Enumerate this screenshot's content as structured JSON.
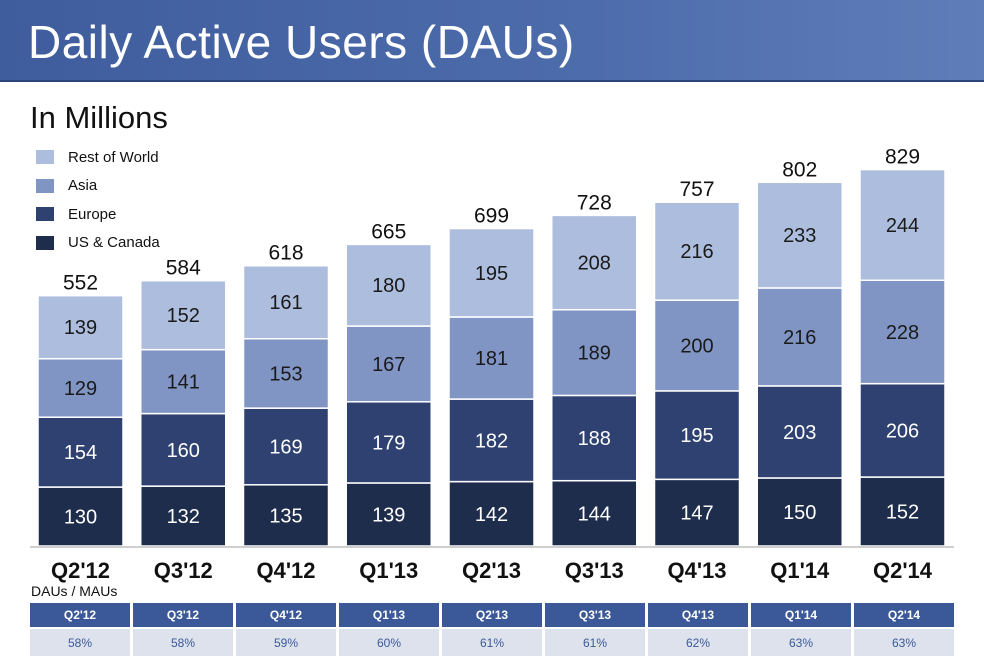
{
  "header": {
    "title": "Daily Active Users (DAUs)"
  },
  "chart_data": {
    "type": "bar",
    "stacked": true,
    "subtitle": "In Millions",
    "categories": [
      "Q2'12",
      "Q3'12",
      "Q4'12",
      "Q1'13",
      "Q2'13",
      "Q3'13",
      "Q4'13",
      "Q1'14",
      "Q2'14"
    ],
    "series": [
      {
        "name": "US & Canada",
        "color": "#1f2d4d",
        "values": [
          130,
          132,
          135,
          139,
          142,
          144,
          147,
          150,
          152
        ]
      },
      {
        "name": "Europe",
        "color": "#2e4170",
        "values": [
          154,
          160,
          169,
          179,
          182,
          188,
          195,
          203,
          206
        ]
      },
      {
        "name": "Asia",
        "color": "#8095c4",
        "values": [
          129,
          141,
          153,
          167,
          181,
          189,
          200,
          216,
          228
        ]
      },
      {
        "name": "Rest of World",
        "color": "#adbddd",
        "values": [
          139,
          152,
          161,
          180,
          195,
          208,
          216,
          233,
          244
        ]
      }
    ],
    "totals": [
      552,
      584,
      618,
      665,
      699,
      728,
      757,
      802,
      829
    ],
    "legend_position": "top-left",
    "grid": false
  },
  "ratio_table": {
    "caption": "DAUs / MAUs",
    "headers": [
      "Q2'12",
      "Q3'12",
      "Q4'12",
      "Q1'13",
      "Q2'13",
      "Q3'13",
      "Q4'13",
      "Q1'14",
      "Q2'14"
    ],
    "values": [
      "58%",
      "58%",
      "59%",
      "60%",
      "61%",
      "61%",
      "62%",
      "63%",
      "63%"
    ]
  }
}
